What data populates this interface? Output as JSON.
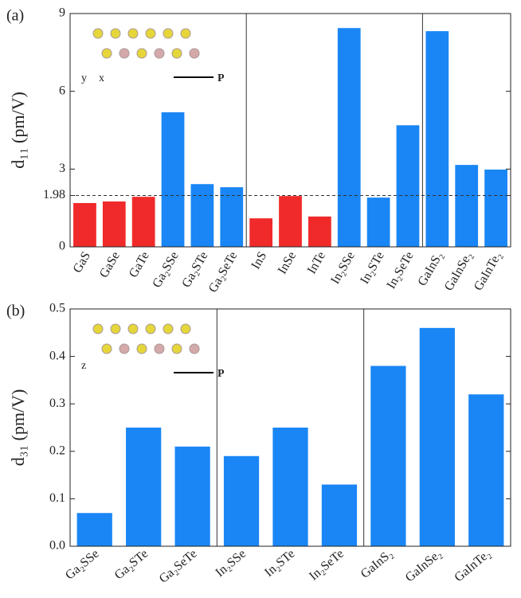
{
  "chart_data": [
    {
      "type": "bar",
      "panel_label": "(a)",
      "ylabel": "d₁₁ (pm/V)",
      "categories": [
        "GaS",
        "GaSe",
        "GaTe",
        "Ga₂SSe",
        "Ga₂STe",
        "Ga₂SeTe",
        "InS",
        "InSe",
        "InTe",
        "In₂SSe",
        "In₂STe",
        "In₂SeTe",
        "GaInS₂",
        "GaInSe₂",
        "GaInTe₂"
      ],
      "values": [
        1.69,
        1.75,
        1.93,
        5.19,
        2.42,
        2.3,
        1.1,
        1.96,
        1.17,
        8.44,
        1.9,
        4.69,
        8.32,
        3.16,
        2.98
      ],
      "colors": [
        "#f02a2a",
        "#f02a2a",
        "#f02a2a",
        "#1a86f5",
        "#1a86f5",
        "#1a86f5",
        "#f02a2a",
        "#f02a2a",
        "#f02a2a",
        "#1a86f5",
        "#1a86f5",
        "#1a86f5",
        "#1a86f5",
        "#1a86f5",
        "#1a86f5"
      ],
      "ylim": [
        0,
        9
      ],
      "yticks": [
        0,
        1.98,
        3,
        6,
        9
      ],
      "reference_line": 1.98,
      "inset_labels": [
        "y",
        "x",
        "P"
      ]
    },
    {
      "type": "bar",
      "panel_label": "(b)",
      "ylabel": "d₃₁ (pm/V)",
      "categories": [
        "Ga₂SSe",
        "Ga₂STe",
        "Ga₂SeTe",
        "In₂SSe",
        "In₂STe",
        "In₂SeTe",
        "GaInS₂",
        "GaInSe₂",
        "GaInTe₂"
      ],
      "values": [
        0.07,
        0.25,
        0.21,
        0.19,
        0.25,
        0.13,
        0.38,
        0.46,
        0.32
      ],
      "color": "#1a86f5",
      "ylim": [
        0,
        0.5
      ],
      "yticks": [
        {
          "value": 0,
          "label": "0.0"
        },
        0.1,
        0.2,
        0.3,
        0.4,
        0.5
      ],
      "inset_labels": [
        "z",
        "P"
      ]
    }
  ]
}
